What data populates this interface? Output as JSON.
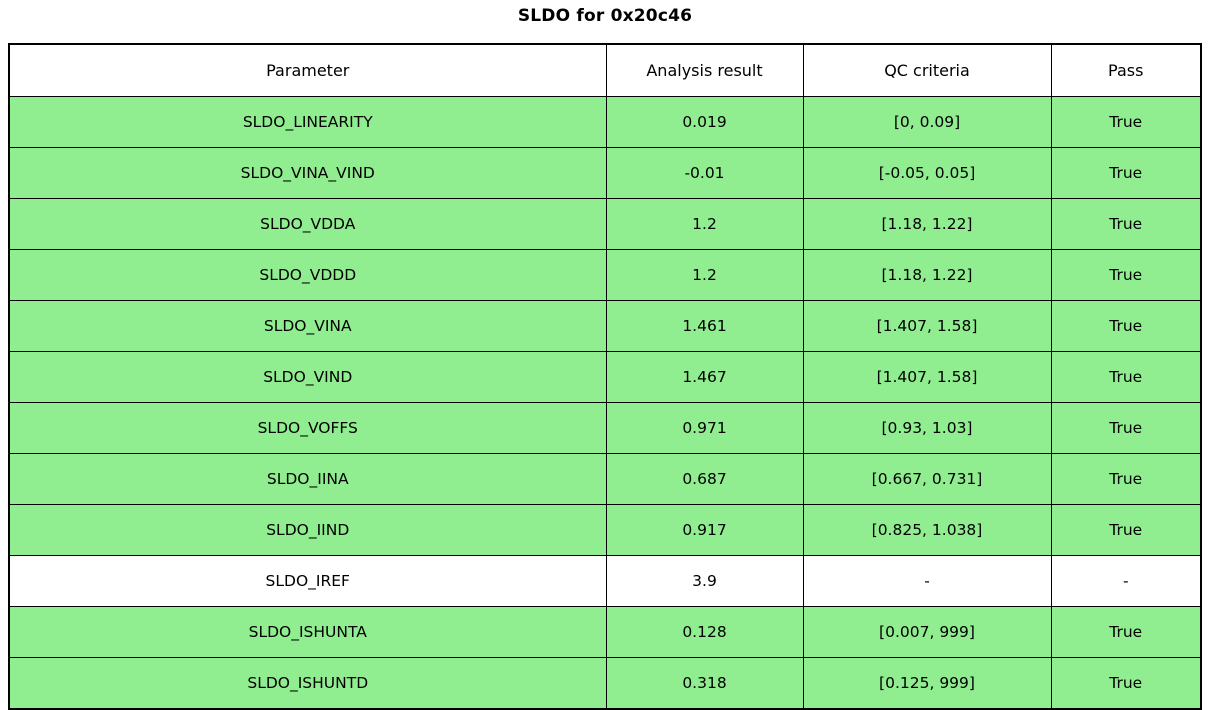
{
  "title": "SLDO for 0x20c46",
  "colors": {
    "pass_row": "#90ee90",
    "neutral_row": "#ffffff",
    "header_row": "#ffffff",
    "border": "#000000",
    "text": "#000000"
  },
  "chart_data": {
    "type": "table",
    "title": "SLDO for 0x20c46",
    "columns": [
      "Parameter",
      "Analysis result",
      "QC criteria",
      "Pass"
    ],
    "rows": [
      [
        "SLDO_LINEARITY",
        "0.019",
        "[0, 0.09]",
        "True"
      ],
      [
        "SLDO_VINA_VIND",
        "-0.01",
        "[-0.05, 0.05]",
        "True"
      ],
      [
        "SLDO_VDDA",
        "1.2",
        "[1.18, 1.22]",
        "True"
      ],
      [
        "SLDO_VDDD",
        "1.2",
        "[1.18, 1.22]",
        "True"
      ],
      [
        "SLDO_VINA",
        "1.461",
        "[1.407, 1.58]",
        "True"
      ],
      [
        "SLDO_VIND",
        "1.467",
        "[1.407, 1.58]",
        "True"
      ],
      [
        "SLDO_VOFFS",
        "0.971",
        "[0.93, 1.03]",
        "True"
      ],
      [
        "SLDO_IINA",
        "0.687",
        "[0.667, 0.731]",
        "True"
      ],
      [
        "SLDO_IIND",
        "0.917",
        "[0.825, 1.038]",
        "True"
      ],
      [
        "SLDO_IREF",
        "3.9",
        "-",
        "-"
      ],
      [
        "SLDO_ISHUNTA",
        "0.128",
        "[0.007, 999]",
        "True"
      ],
      [
        "SLDO_ISHUNTD",
        "0.318",
        "[0.125, 999]",
        "True"
      ]
    ],
    "row_highlight": [
      "pass",
      "pass",
      "pass",
      "pass",
      "pass",
      "pass",
      "pass",
      "pass",
      "pass",
      "none",
      "pass",
      "pass"
    ],
    "legend_position": "none",
    "grid": "full-borders"
  }
}
